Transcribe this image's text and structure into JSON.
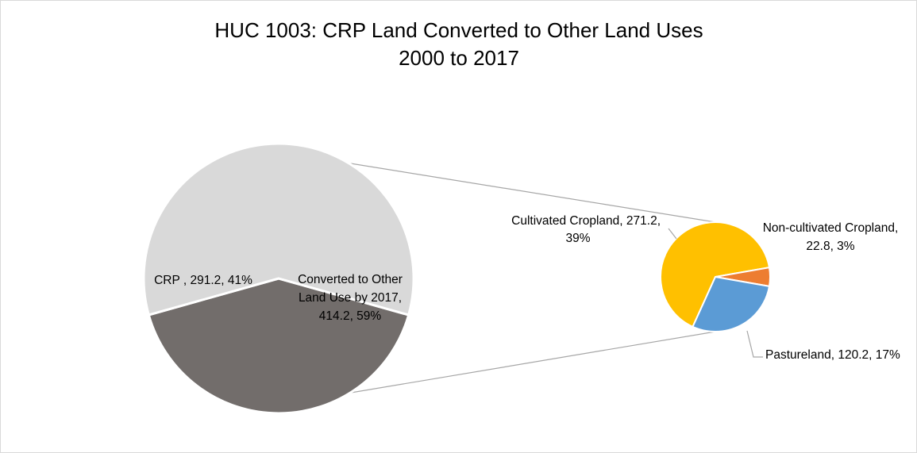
{
  "chart_data": [
    {
      "type": "pie",
      "title": [
        "HUC 1003: CRP Land Converted to Other Land Uses",
        "2000 to 2017"
      ],
      "slices": [
        {
          "name": "CRP",
          "value": 291.2,
          "percent": 41,
          "color": "#726d6b",
          "label_lines": [
            "CRP , 291.2, 41%"
          ]
        },
        {
          "name": "Converted to Other Land Use by 2017",
          "value": 414.2,
          "percent": 59,
          "color": "#d9d9d9",
          "label_lines": [
            "Converted to Other",
            "Land Use by 2017,",
            "414.2, 59%"
          ]
        }
      ]
    },
    {
      "type": "pie",
      "slices": [
        {
          "name": "Cultivated Cropland",
          "value": 271.2,
          "percent": 39,
          "color": "#ffc000",
          "label_lines": [
            "Cultivated Cropland, 271.2,",
            "39%"
          ]
        },
        {
          "name": "Non-cultivated Cropland",
          "value": 22.8,
          "percent": 3,
          "color": "#ed7d31",
          "label_lines": [
            "Non-cultivated Cropland,",
            "22.8, 3%"
          ]
        },
        {
          "name": "Pastureland",
          "value": 120.2,
          "percent": 17,
          "color": "#5b9bd5",
          "label_lines": [
            "Pastureland, 120.2, 17%"
          ]
        }
      ]
    }
  ],
  "colors": {
    "connector": "#a6a6a6",
    "slice_border": "#ffffff",
    "leader": "#a6a6a6"
  }
}
